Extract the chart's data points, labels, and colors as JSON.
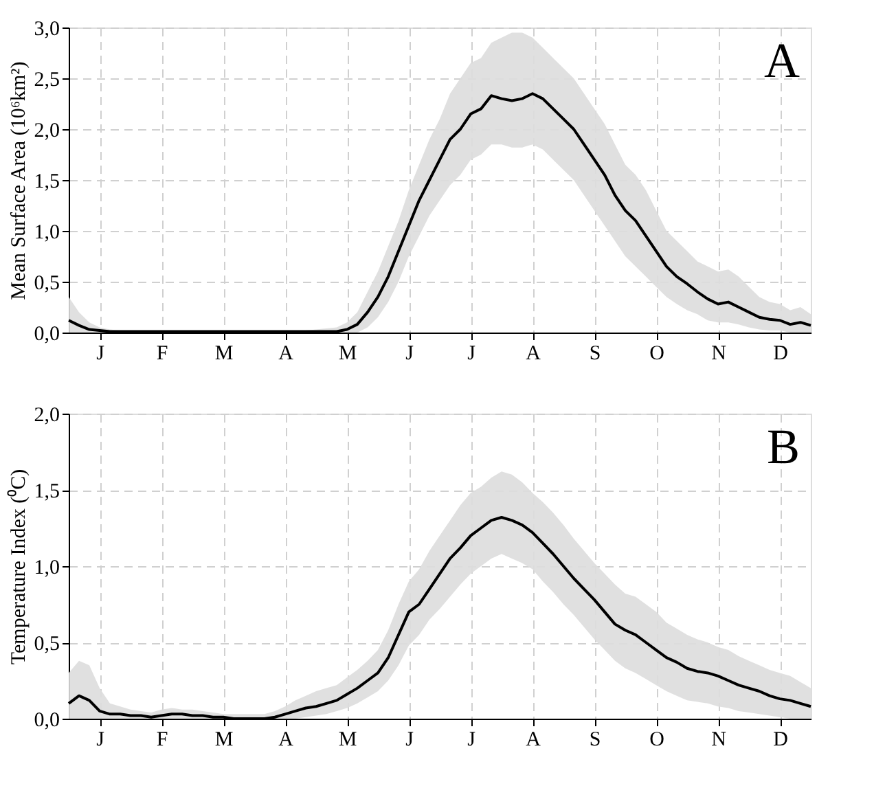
{
  "chart_data": [
    {
      "type": "line",
      "ylabel": "Mean Surface Area (10⁶km²)",
      "annotations": [
        "A"
      ],
      "grid": true,
      "line_style": "solid",
      "categories": [
        null,
        null,
        null,
        "J",
        null,
        null,
        null,
        null,
        null,
        "F",
        null,
        null,
        null,
        null,
        null,
        "M",
        null,
        null,
        null,
        null,
        null,
        "A",
        null,
        null,
        null,
        null,
        null,
        "M",
        null,
        null,
        null,
        null,
        null,
        "J",
        null,
        null,
        null,
        null,
        null,
        "J",
        null,
        null,
        null,
        null,
        null,
        "A",
        null,
        null,
        null,
        null,
        null,
        "S",
        null,
        null,
        null,
        null,
        null,
        "O",
        null,
        null,
        null,
        null,
        null,
        "N",
        null,
        null,
        null,
        null,
        null,
        "D",
        null,
        null,
        null
      ],
      "ylim": [
        0,
        3
      ],
      "yticks": [
        {
          "value": 0,
          "label": "0,0"
        },
        {
          "value": 0.5,
          "label": "0,5"
        },
        {
          "value": 1,
          "label": "1,0"
        },
        {
          "value": 1.5,
          "label": "1,5"
        },
        {
          "value": 2,
          "label": "2,0"
        },
        {
          "value": 2.5,
          "label": "2,5"
        },
        {
          "value": 3,
          "label": "3,0"
        }
      ],
      "series": [
        {
          "color": "#000000",
          "values": [
            0.12,
            0.07,
            0.03,
            0.02,
            0.01,
            0.01,
            0.01,
            0.01,
            0.01,
            0.01,
            0.01,
            0.01,
            0.01,
            0.01,
            0.01,
            0.01,
            0.01,
            0.01,
            0.01,
            0.01,
            0.01,
            0.01,
            0.01,
            0.01,
            0.01,
            0.01,
            0.01,
            0.03,
            0.08,
            0.2,
            0.35,
            0.55,
            0.8,
            1.05,
            1.3,
            1.5,
            1.7,
            1.9,
            2.0,
            2.15,
            2.2,
            2.33,
            2.3,
            2.28,
            2.3,
            2.35,
            2.3,
            2.2,
            2.1,
            2.0,
            1.85,
            1.7,
            1.55,
            1.35,
            1.2,
            1.1,
            0.95,
            0.8,
            0.65,
            0.55,
            0.48,
            0.4,
            0.33,
            0.28,
            0.3,
            0.25,
            0.2,
            0.15,
            0.13,
            0.12,
            0.08,
            0.1,
            0.07
          ],
          "lower": [
            0.0,
            0.0,
            0.0,
            0.0,
            0.0,
            0.0,
            0.0,
            0.0,
            0.0,
            0.0,
            0.0,
            0.0,
            0.0,
            0.0,
            0.0,
            0.0,
            0.0,
            0.0,
            0.0,
            0.0,
            0.0,
            0.0,
            0.0,
            0.0,
            0.0,
            0.0,
            0.0,
            0.0,
            0.0,
            0.05,
            0.15,
            0.3,
            0.5,
            0.75,
            0.95,
            1.15,
            1.3,
            1.45,
            1.55,
            1.7,
            1.75,
            1.85,
            1.85,
            1.82,
            1.82,
            1.85,
            1.8,
            1.7,
            1.6,
            1.5,
            1.35,
            1.2,
            1.05,
            0.9,
            0.75,
            0.65,
            0.55,
            0.45,
            0.35,
            0.28,
            0.22,
            0.18,
            0.12,
            0.1,
            0.1,
            0.08,
            0.05,
            0.03,
            0.02,
            0.02,
            0.0,
            0.0,
            0.0
          ],
          "upper": [
            0.35,
            0.2,
            0.1,
            0.05,
            0.03,
            0.02,
            0.02,
            0.02,
            0.02,
            0.02,
            0.02,
            0.02,
            0.02,
            0.02,
            0.02,
            0.02,
            0.02,
            0.02,
            0.02,
            0.02,
            0.02,
            0.02,
            0.02,
            0.02,
            0.03,
            0.04,
            0.05,
            0.1,
            0.2,
            0.4,
            0.6,
            0.85,
            1.1,
            1.4,
            1.65,
            1.9,
            2.1,
            2.35,
            2.5,
            2.65,
            2.7,
            2.85,
            2.9,
            2.95,
            2.95,
            2.9,
            2.8,
            2.7,
            2.6,
            2.5,
            2.35,
            2.2,
            2.05,
            1.85,
            1.65,
            1.55,
            1.4,
            1.2,
            1.0,
            0.9,
            0.8,
            0.7,
            0.65,
            0.6,
            0.62,
            0.55,
            0.45,
            0.35,
            0.3,
            0.28,
            0.22,
            0.25,
            0.18
          ]
        }
      ]
    },
    {
      "type": "line",
      "ylabel": "Temperature Index (⁰C)",
      "annotations": [
        "B"
      ],
      "grid": true,
      "line_style": "solid",
      "categories": [
        null,
        null,
        null,
        "J",
        null,
        null,
        null,
        null,
        null,
        "F",
        null,
        null,
        null,
        null,
        null,
        "M",
        null,
        null,
        null,
        null,
        null,
        "A",
        null,
        null,
        null,
        null,
        null,
        "M",
        null,
        null,
        null,
        null,
        null,
        "J",
        null,
        null,
        null,
        null,
        null,
        "J",
        null,
        null,
        null,
        null,
        null,
        "A",
        null,
        null,
        null,
        null,
        null,
        "S",
        null,
        null,
        null,
        null,
        null,
        "O",
        null,
        null,
        null,
        null,
        null,
        "N",
        null,
        null,
        null,
        null,
        null,
        "D",
        null,
        null,
        null
      ],
      "ylim": [
        0,
        2
      ],
      "yticks": [
        {
          "value": 0,
          "label": "0,0"
        },
        {
          "value": 0.5,
          "label": "0,5"
        },
        {
          "value": 1,
          "label": "1,0"
        },
        {
          "value": 1.5,
          "label": "1,5"
        },
        {
          "value": 2,
          "label": "2,0"
        }
      ],
      "series": [
        {
          "color": "#000000",
          "values": [
            0.1,
            0.15,
            0.12,
            0.05,
            0.03,
            0.03,
            0.02,
            0.02,
            0.01,
            0.02,
            0.03,
            0.03,
            0.02,
            0.02,
            0.01,
            0.01,
            0.0,
            0.0,
            0.0,
            0.0,
            0.01,
            0.03,
            0.05,
            0.07,
            0.08,
            0.1,
            0.12,
            0.16,
            0.2,
            0.25,
            0.3,
            0.4,
            0.55,
            0.7,
            0.75,
            0.85,
            0.95,
            1.05,
            1.12,
            1.2,
            1.25,
            1.3,
            1.32,
            1.3,
            1.27,
            1.22,
            1.15,
            1.08,
            1.0,
            0.92,
            0.85,
            0.78,
            0.7,
            0.62,
            0.58,
            0.55,
            0.5,
            0.45,
            0.4,
            0.37,
            0.33,
            0.31,
            0.3,
            0.28,
            0.25,
            0.22,
            0.2,
            0.18,
            0.15,
            0.13,
            0.12,
            0.1,
            0.08
          ],
          "lower": [
            0.0,
            0.0,
            0.0,
            0.0,
            0.0,
            0.0,
            0.0,
            0.0,
            0.0,
            0.0,
            0.0,
            0.0,
            0.0,
            0.0,
            0.0,
            0.0,
            0.0,
            0.0,
            0.0,
            0.0,
            0.0,
            0.0,
            0.0,
            0.01,
            0.02,
            0.03,
            0.05,
            0.07,
            0.1,
            0.14,
            0.18,
            0.25,
            0.35,
            0.48,
            0.55,
            0.65,
            0.72,
            0.8,
            0.88,
            0.95,
            1.0,
            1.05,
            1.08,
            1.05,
            1.02,
            0.98,
            0.9,
            0.83,
            0.75,
            0.68,
            0.6,
            0.52,
            0.45,
            0.38,
            0.33,
            0.3,
            0.26,
            0.22,
            0.18,
            0.15,
            0.12,
            0.11,
            0.1,
            0.08,
            0.07,
            0.05,
            0.04,
            0.03,
            0.02,
            0.01,
            0.0,
            0.0,
            0.0
          ],
          "upper": [
            0.3,
            0.38,
            0.35,
            0.2,
            0.1,
            0.08,
            0.06,
            0.05,
            0.04,
            0.06,
            0.07,
            0.06,
            0.06,
            0.05,
            0.04,
            0.03,
            0.03,
            0.03,
            0.03,
            0.03,
            0.05,
            0.08,
            0.12,
            0.15,
            0.18,
            0.2,
            0.22,
            0.27,
            0.32,
            0.38,
            0.45,
            0.58,
            0.75,
            0.9,
            0.98,
            1.1,
            1.2,
            1.3,
            1.4,
            1.48,
            1.52,
            1.58,
            1.62,
            1.6,
            1.55,
            1.48,
            1.42,
            1.35,
            1.27,
            1.18,
            1.1,
            1.02,
            0.95,
            0.88,
            0.82,
            0.8,
            0.75,
            0.7,
            0.63,
            0.59,
            0.55,
            0.52,
            0.5,
            0.47,
            0.45,
            0.41,
            0.38,
            0.35,
            0.32,
            0.3,
            0.28,
            0.24,
            0.2
          ]
        }
      ]
    }
  ]
}
